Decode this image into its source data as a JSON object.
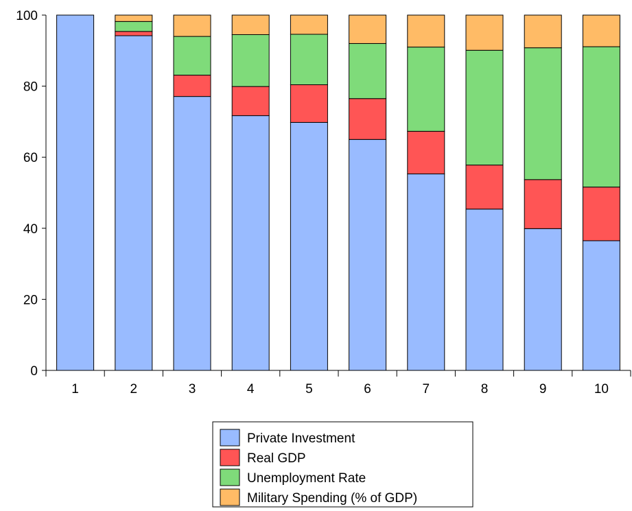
{
  "chart_data": {
    "type": "bar",
    "stacked": true,
    "categories": [
      "1",
      "2",
      "3",
      "4",
      "5",
      "6",
      "7",
      "8",
      "9",
      "10"
    ],
    "series": [
      {
        "name": "Private Investment",
        "color": "#99bbff",
        "values": [
          100,
          94.2,
          77.1,
          71.7,
          69.8,
          65.0,
          55.3,
          45.4,
          39.9,
          36.5
        ]
      },
      {
        "name": "Real GDP",
        "color": "#ff5555",
        "values": [
          0,
          1.2,
          6.0,
          8.2,
          10.6,
          11.5,
          12.0,
          12.4,
          13.8,
          15.1
        ]
      },
      {
        "name": "Unemployment Rate",
        "color": "#7fdb7a",
        "values": [
          0,
          2.8,
          10.9,
          14.6,
          14.2,
          15.5,
          23.7,
          32.3,
          37.1,
          39.5
        ]
      },
      {
        "name": "Military Spending (% of GDP)",
        "color": "#ffbb66",
        "values": [
          0,
          1.8,
          6.0,
          5.5,
          5.4,
          8.0,
          9.0,
          9.9,
          9.2,
          8.9
        ]
      }
    ],
    "ylim": [
      0,
      100
    ],
    "yticks": [
      "0",
      "20",
      "40",
      "60",
      "80",
      "100"
    ],
    "grid": false,
    "legend_placement": "bottom-center",
    "title": "",
    "xlabel": "",
    "ylabel": ""
  }
}
